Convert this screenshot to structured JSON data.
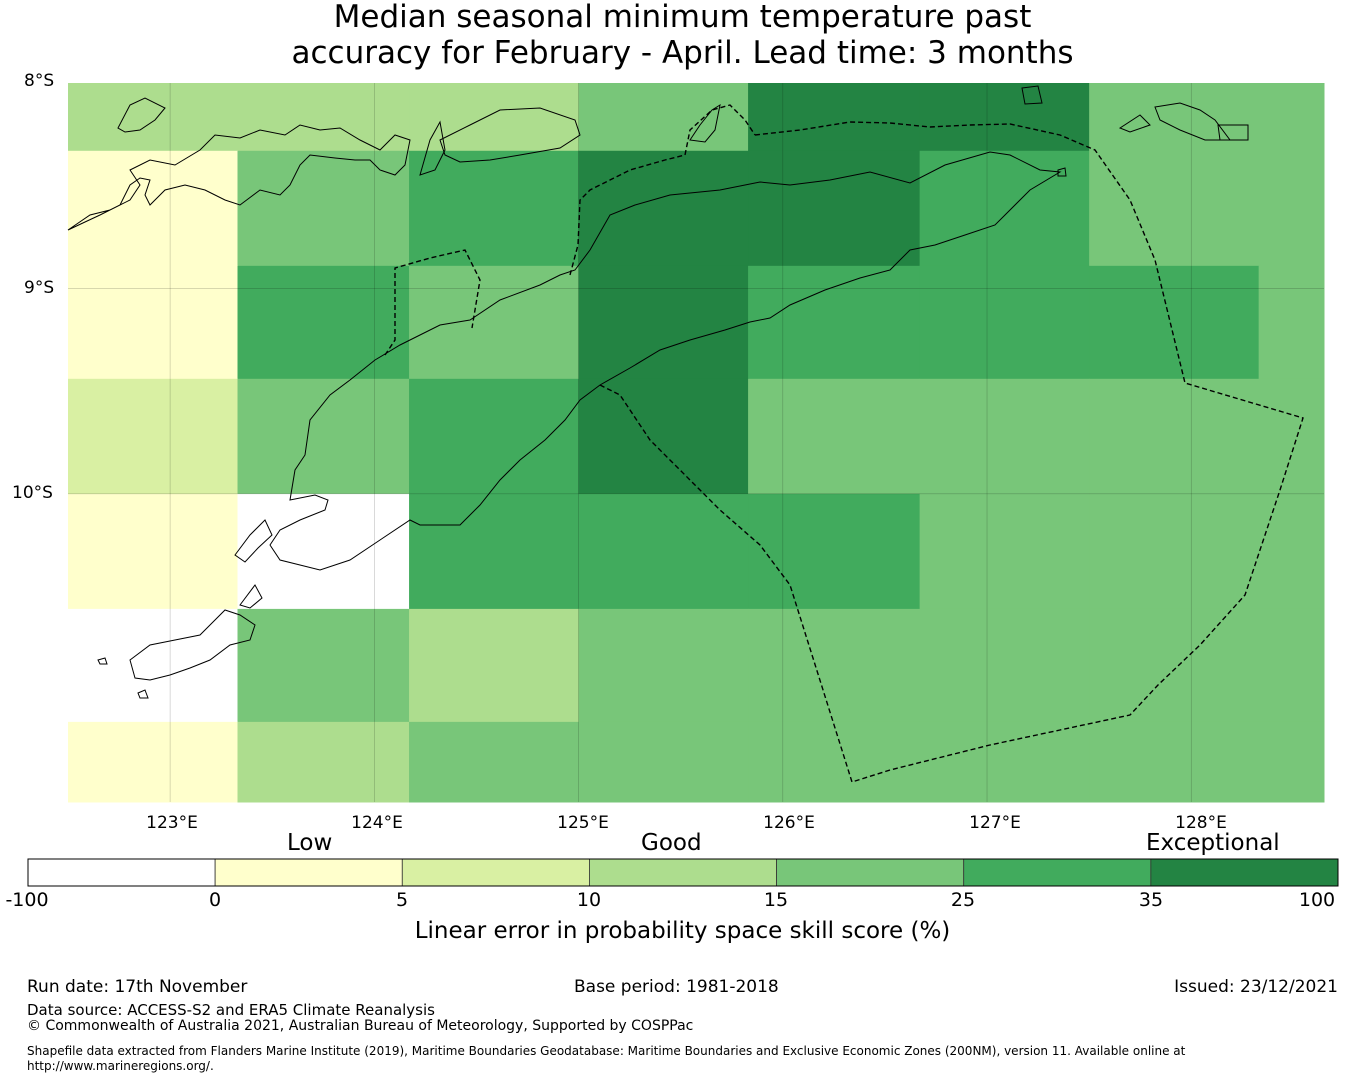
{
  "title": {
    "line1": "Median seasonal minimum temperature past",
    "line2": "accuracy for February - April. Lead time: 3 months"
  },
  "map": {
    "lon_range": [
      122.5,
      128.65
    ],
    "lat_range": [
      -11.5,
      -8
    ],
    "lat_labels": [
      "8°S",
      "9°S",
      "10°S"
    ],
    "lon_labels": [
      "123°E",
      "124°E",
      "125°E",
      "126°E",
      "127°E",
      "128°E"
    ],
    "grid_lines": true,
    "cell_bins": {
      "lon_edges": [
        122.5,
        123.33,
        124.17,
        125.0,
        125.83,
        126.67,
        127.5,
        128.33,
        128.65
      ],
      "lat_edges": [
        -8.0,
        -8.33,
        -8.89,
        -9.44,
        -10.0,
        -10.56,
        -11.11,
        -11.5
      ],
      "category_rows": [
        [
          3,
          3,
          3,
          4,
          6,
          6,
          4,
          4
        ],
        [
          1,
          4,
          5,
          6,
          6,
          5,
          4,
          4
        ],
        [
          1,
          5,
          4,
          6,
          5,
          5,
          5,
          4
        ],
        [
          2,
          4,
          5,
          6,
          4,
          4,
          4,
          4
        ],
        [
          1,
          0,
          5,
          5,
          5,
          4,
          4,
          4
        ],
        [
          0,
          4,
          3,
          4,
          4,
          4,
          4,
          4
        ],
        [
          1,
          3,
          4,
          4,
          4,
          4,
          4,
          4
        ]
      ]
    },
    "boundary_line": "dashed"
  },
  "colorbar": {
    "category_labels": [
      "Low",
      "Good",
      "Exceptional"
    ],
    "ticks": [
      "-100",
      "0",
      "5",
      "10",
      "15",
      "25",
      "35",
      "100"
    ],
    "colors": [
      "#ffffff",
      "#ffffcc",
      "#d9f0a3",
      "#addd8e",
      "#78c679",
      "#41ab5d",
      "#238443"
    ],
    "title": "Linear error in probability space skill score (%)"
  },
  "footer": {
    "run_date": "Run date: 17th November",
    "base_period": "Base period: 1981-2018",
    "issued": "Issued: 23/12/2021",
    "data_source": "Data source: ACCESS-S2 and ERA5 Climate Reanalysis",
    "copyright": "© Commonwealth of Australia 2021, Australian Bureau of Meteorology, Supported by COSPPac",
    "shapefile_line1": "Shapefile data extracted from Flanders Marine Institute (2019), Maritime Boundaries Geodatabase: Maritime Boundaries and Exclusive Economic Zones (200NM), version 11. Available online at",
    "shapefile_line2": "http://www.marineregions.org/."
  }
}
